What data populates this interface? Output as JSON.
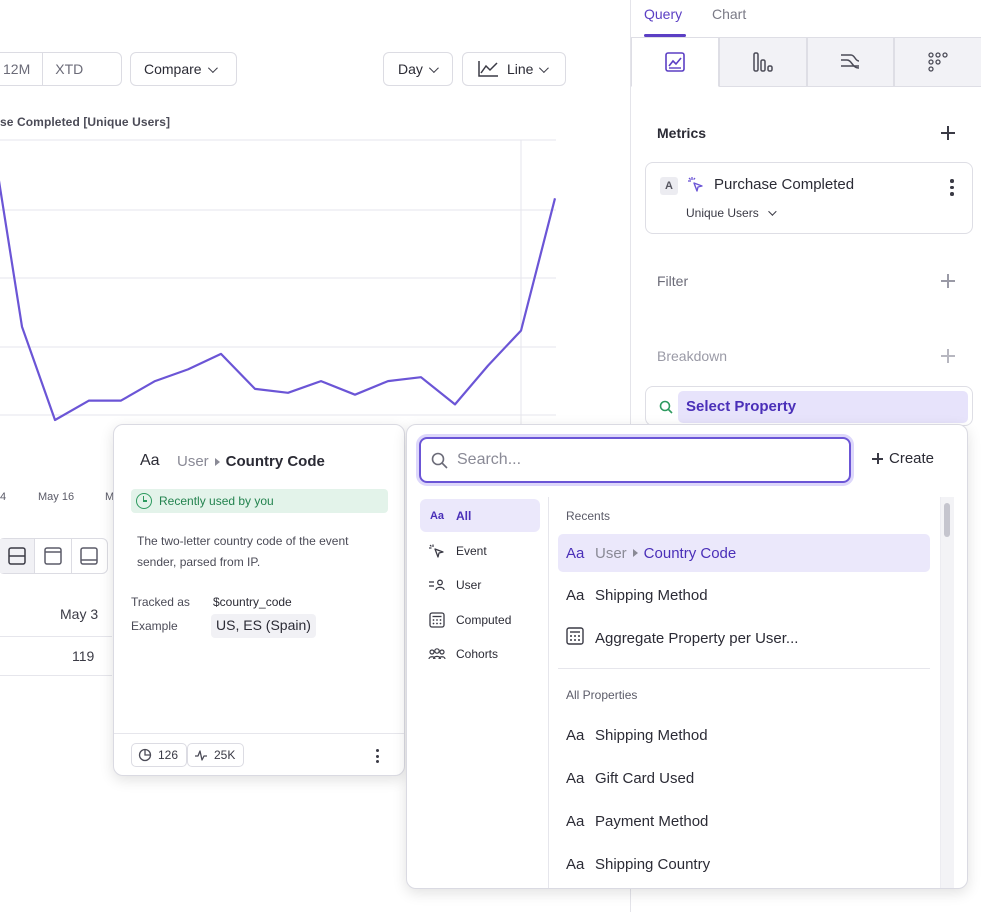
{
  "toolbar": {
    "range_12m": "12M",
    "range_xtd": "XTD",
    "compare": "Compare",
    "granularity": "Day",
    "chart_type": "Line"
  },
  "chart": {
    "title_fragment": "se Completed [Unique Users]",
    "x_labels": [
      "4",
      "May 16",
      "M"
    ]
  },
  "chart_data": {
    "type": "line",
    "title": "se Completed [Unique Users]",
    "series": [
      {
        "name": "Purchase Completed",
        "values": [
          172,
          84,
          36,
          46,
          46,
          56,
          62,
          70,
          52,
          50,
          56,
          49,
          56,
          58,
          44,
          64,
          82,
          150
        ]
      }
    ],
    "x_tick_labels": [
      "4",
      "May 16",
      "M"
    ],
    "grid": true,
    "color": "#6b55d6"
  },
  "table": {
    "header": "May 3",
    "value": "119"
  },
  "right_panel": {
    "tabs": [
      "Query",
      "Chart"
    ],
    "metrics_label": "Metrics",
    "metric": {
      "badge": "A",
      "name": "Purchase Completed",
      "measure": "Unique Users"
    },
    "filter_label": "Filter",
    "breakdown_label": "Breakdown",
    "select_property": "Select Property"
  },
  "detail": {
    "type_icon": "Aa",
    "entity": "User",
    "property": "Country Code",
    "recent_badge": "Recently used by you",
    "description": "The two-letter country code of the event sender, parsed from IP.",
    "tracked_as_label": "Tracked as",
    "tracked_as_value": "$country_code",
    "example_label": "Example",
    "example_value": "US, ES (Spain)",
    "stat_1": "126",
    "stat_2": "25K"
  },
  "picker": {
    "search_placeholder": "Search...",
    "create_label": "Create",
    "categories": [
      {
        "icon": "Aa",
        "label": "All"
      },
      {
        "icon": "event-icon",
        "label": "Event"
      },
      {
        "icon": "user-icon",
        "label": "User"
      },
      {
        "icon": "computed-icon",
        "label": "Computed"
      },
      {
        "icon": "cohorts-icon",
        "label": "Cohorts"
      }
    ],
    "recents_label": "Recents",
    "recents": [
      {
        "icon": "Aa",
        "entity": "User",
        "name": "Country Code"
      },
      {
        "icon": "Aa",
        "name": "Shipping Method"
      },
      {
        "icon": "calculator-icon",
        "name": "Aggregate Property per User..."
      }
    ],
    "all_label": "All Properties",
    "all": [
      {
        "icon": "Aa",
        "name": "Shipping Method"
      },
      {
        "icon": "Aa",
        "name": "Gift Card Used"
      },
      {
        "icon": "Aa",
        "name": "Payment Method"
      },
      {
        "icon": "Aa",
        "name": "Shipping Country"
      }
    ]
  }
}
